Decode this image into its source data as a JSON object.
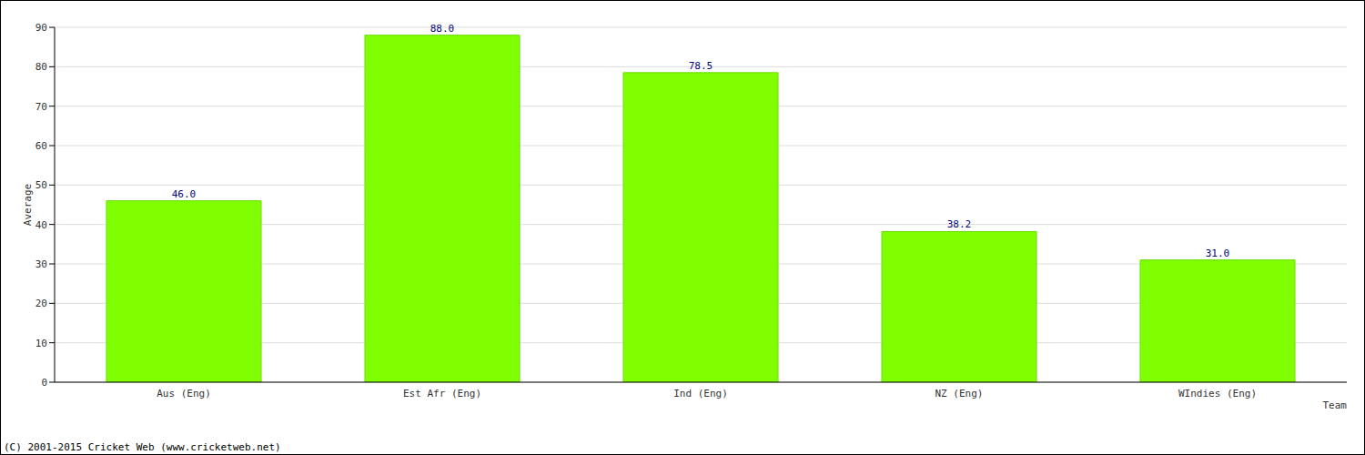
{
  "chart_data": {
    "type": "bar",
    "categories": [
      "Aus (Eng)",
      "Est Afr (Eng)",
      "Ind (Eng)",
      "NZ (Eng)",
      "WIndies (Eng)"
    ],
    "values": [
      46.0,
      88.0,
      78.5,
      38.2,
      31.0
    ],
    "value_labels": [
      "46.0",
      "88.0",
      "78.5",
      "38.2",
      "31.0"
    ],
    "data_labels": true,
    "color": "#80ff00",
    "ylim": [
      0,
      90
    ],
    "yticks": [
      0,
      10,
      20,
      30,
      40,
      50,
      60,
      70,
      80,
      90
    ],
    "grid": true,
    "x_label": "Team",
    "y_label": "Average",
    "annotations": [
      "(C) 2001-2015 Cricket Web (www.cricketweb.net)"
    ]
  }
}
